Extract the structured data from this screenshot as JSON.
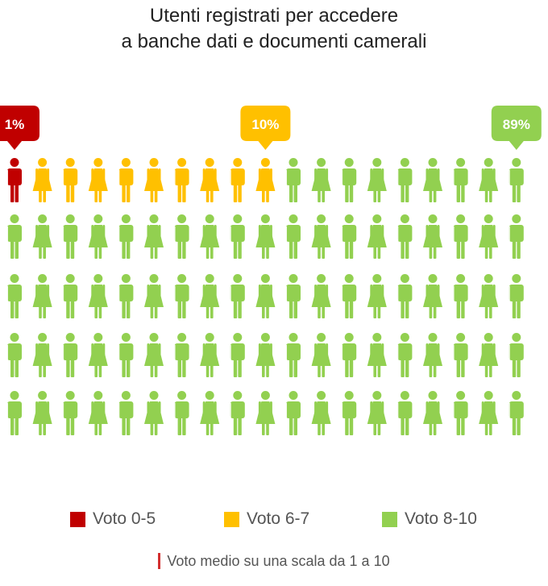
{
  "chart_data": {
    "type": "pictogram",
    "title": [
      "Utenti registrati per accedere",
      "a banche dati e documenti camerali"
    ],
    "total_icons": 95,
    "series": [
      {
        "name": "Voto 0-5",
        "percent": 1,
        "label": "1%",
        "color": "#c00000"
      },
      {
        "name": "Voto 6-7",
        "percent": 10,
        "label": "10%",
        "color": "#ffc000"
      },
      {
        "name": "Voto 8-10",
        "percent": 89,
        "label": "89%",
        "color": "#92d050"
      }
    ],
    "legend_position": "bottom",
    "footnote": "Voto medio su una scala da 1 a 10"
  }
}
